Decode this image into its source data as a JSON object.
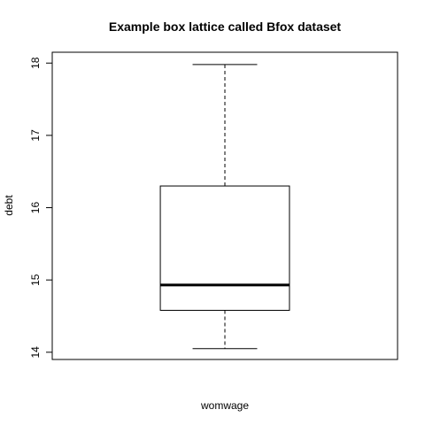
{
  "chart_data": {
    "type": "box",
    "title": "Example box lattice called Bfox dataset",
    "xlabel": "womwage",
    "ylabel": "debt",
    "ylim": [
      13.9,
      18.15
    ],
    "yticks": [
      14,
      15,
      16,
      17,
      18
    ],
    "grid": false,
    "boxes": [
      {
        "min": 14.05,
        "q1": 14.58,
        "median": 14.93,
        "q3": 16.3,
        "max": 17.98
      }
    ],
    "colors": {
      "stroke": "#000000",
      "background": "#ffffff"
    }
  }
}
